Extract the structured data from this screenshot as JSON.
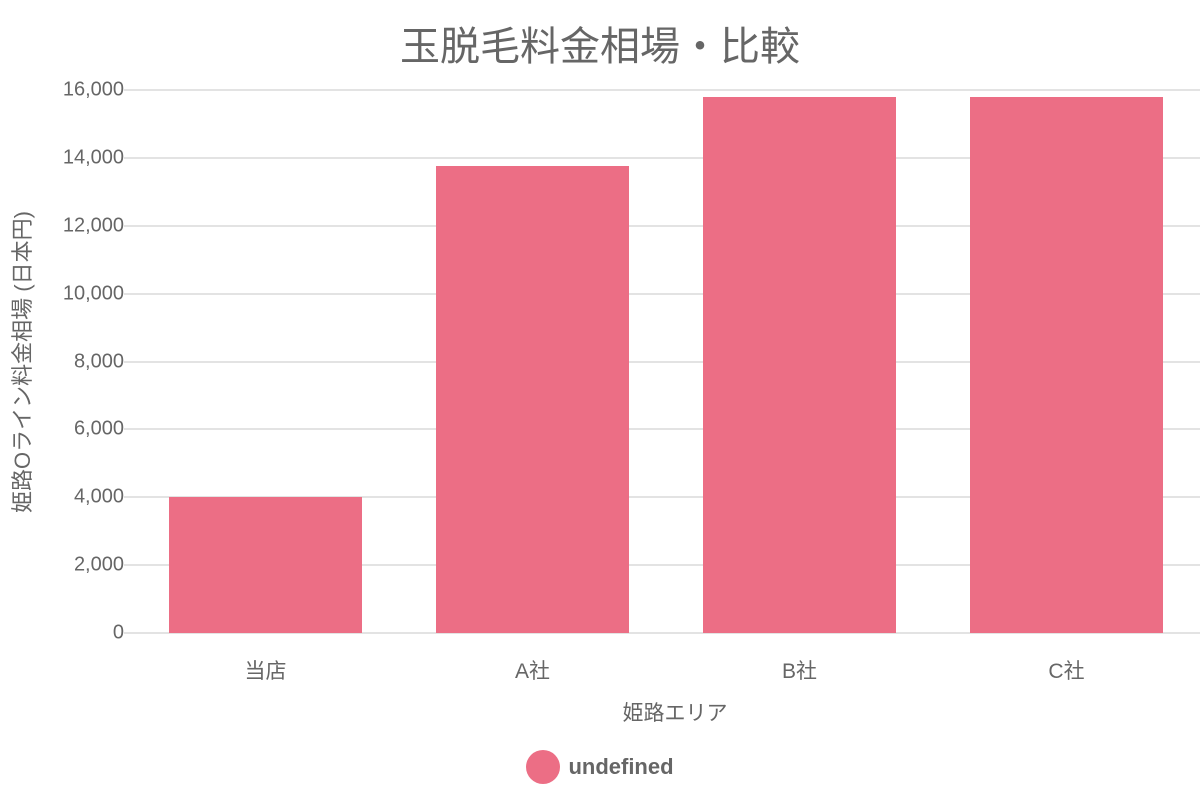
{
  "chart_data": {
    "type": "bar",
    "title": "玉脱毛料金相場・比較",
    "xlabel": "姫路エリア",
    "ylabel": "姫路Oライン料金相場 (日本円)",
    "categories": [
      "当店",
      "A社",
      "B社",
      "C社"
    ],
    "series": [
      {
        "name": "undefined",
        "color": "#EC6E85",
        "values": [
          4000,
          13750,
          15800,
          15800
        ]
      }
    ],
    "ylim": [
      0,
      16000
    ],
    "yticks": [
      0,
      2000,
      4000,
      6000,
      8000,
      10000,
      12000,
      14000,
      16000
    ],
    "ytick_labels": [
      "0",
      "2,000",
      "4,000",
      "6,000",
      "8,000",
      "10,000",
      "12,000",
      "14,000",
      "16,000"
    ],
    "grid": true,
    "legend_position": "bottom"
  },
  "legend": {
    "label": "undefined",
    "color": "#EC6E85"
  }
}
